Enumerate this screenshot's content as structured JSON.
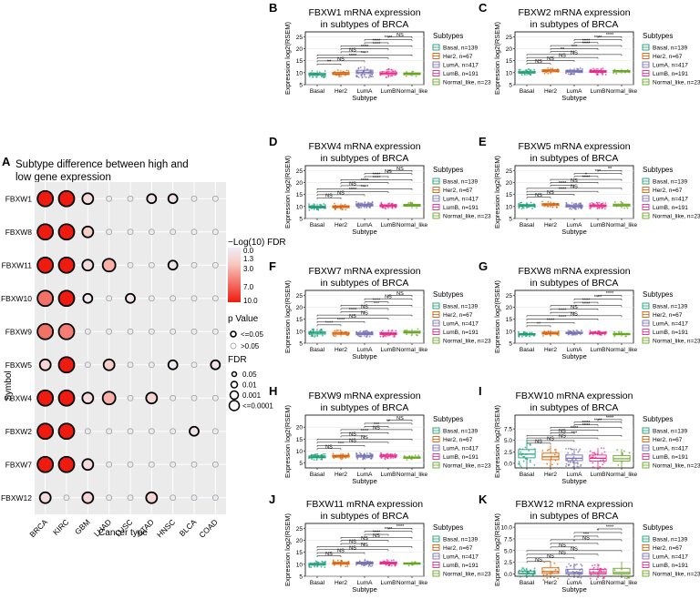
{
  "panel_a": {
    "letter": "A",
    "title_line1": "Subtype difference between high and",
    "title_line2": "low gene expression",
    "ylabel": "Symbol",
    "xlabel": "Cancer type",
    "fdr_legend_title": "−Log(10) FDR",
    "fdr_ticks": [
      "0.0",
      "1.3",
      "3.0",
      "7.0",
      "10.0"
    ],
    "pvalue_legend_title": "p Value",
    "pvalue_items": [
      "<=0.05",
      ">0.05"
    ],
    "fdr_size_title": "FDR",
    "fdr_size_items": [
      "0.05",
      "0.01",
      "0.001",
      "<=0.0001"
    ],
    "colors": {
      "low": "#eeeef8",
      "mid": "#f8c8c0",
      "high": "#ee1c10",
      "panel_bg": "#ebebeb",
      "grid": "#ffffff"
    }
  },
  "chart_data": [
    {
      "type": "scatter",
      "title": "Subtype difference between high and low gene expression",
      "xlabel": "Cancer type",
      "ylabel": "Symbol",
      "x_categories": [
        "BRCA",
        "KIRC",
        "GBM",
        "LUAD",
        "LUSC",
        "STAD",
        "HNSC",
        "BLCA",
        "COAD"
      ],
      "y_categories": [
        "FBXW1",
        "FBXW8",
        "FBXW11",
        "FBXW10",
        "FBXW9",
        "FBXW5",
        "FBXW4",
        "FBXW2",
        "FBXW7",
        "FBXW12"
      ],
      "neglog10_fdr": [
        [
          10,
          10,
          1.5,
          0.3,
          0.3,
          1.0,
          1.0,
          0.2,
          0.2
        ],
        [
          10,
          10,
          2.5,
          0.3,
          0.3,
          0.3,
          0.3,
          0.2,
          0.2
        ],
        [
          10,
          10,
          1.5,
          4.0,
          0.3,
          0.3,
          0.8,
          0.2,
          0.2
        ],
        [
          6.5,
          10,
          0.5,
          0.3,
          0.8,
          0.3,
          0.3,
          0.2,
          0.2
        ],
        [
          6.5,
          6.0,
          0.3,
          0.3,
          0.3,
          0.3,
          0.3,
          0.2,
          0.2
        ],
        [
          2.0,
          10,
          0.3,
          2.5,
          0.3,
          0.3,
          0.3,
          0.2,
          0.8
        ],
        [
          10,
          10,
          1.5,
          4.0,
          0.3,
          2.0,
          0.3,
          0.2,
          0.2
        ],
        [
          10,
          10,
          0.3,
          0.3,
          0.3,
          0.3,
          0.3,
          0.8,
          0.2
        ],
        [
          10,
          10,
          1.5,
          0.3,
          0.3,
          0.3,
          0.3,
          0.2,
          0.2
        ],
        [
          1.5,
          0.3,
          2.0,
          0.3,
          0.3,
          2.0,
          0.3,
          0.2,
          0.2
        ]
      ],
      "significant": [
        [
          1,
          1,
          1,
          0,
          0,
          1,
          1,
          0,
          0
        ],
        [
          1,
          1,
          1,
          0,
          0,
          0,
          0,
          0,
          0
        ],
        [
          1,
          1,
          1,
          1,
          0,
          0,
          1,
          0,
          0
        ],
        [
          1,
          1,
          1,
          0,
          1,
          0,
          0,
          0,
          0
        ],
        [
          1,
          1,
          0,
          0,
          0,
          0,
          0,
          0,
          0
        ],
        [
          1,
          1,
          0,
          1,
          0,
          0,
          1,
          0,
          1
        ],
        [
          1,
          1,
          1,
          1,
          0,
          1,
          0,
          0,
          0
        ],
        [
          1,
          1,
          0,
          0,
          0,
          0,
          0,
          1,
          0
        ],
        [
          1,
          1,
          1,
          0,
          0,
          0,
          0,
          0,
          0
        ],
        [
          1,
          0,
          1,
          0,
          0,
          1,
          0,
          0,
          0
        ]
      ],
      "fdr_legend_range": [
        0,
        10
      ],
      "p_value_legend": [
        "<=0.05",
        ">0.05"
      ],
      "fdr_size_legend": [
        "0.05",
        "0.01",
        "0.001",
        "<=0.0001"
      ]
    },
    {
      "type": "box",
      "letter": "B",
      "title_line1": "FBXW1 mRNA expression",
      "title_line2": "in subtypes of BRCA",
      "xlabel": "Subtype",
      "ylabel": "Expression log2(RSEM)",
      "ylim": [
        5,
        27
      ],
      "yticks": [
        "5",
        "10",
        "15",
        "20",
        "25"
      ],
      "categories": [
        "Basal",
        "Her2",
        "LumA",
        "LumB",
        "Normal_like"
      ],
      "medians": [
        9.3,
        9.6,
        10.2,
        9.7,
        9.5
      ],
      "q1": [
        8.9,
        9.2,
        9.6,
        9.2,
        9.2
      ],
      "q3": [
        9.8,
        10.1,
        11.0,
        10.3,
        9.9
      ],
      "brackets": [
        "**",
        "NS",
        "****",
        "****",
        "NS",
        "****",
        "****",
        "****",
        "****",
        "NS"
      ]
    },
    {
      "type": "box",
      "letter": "C",
      "title_line1": "FBXW2 mRNA expression",
      "title_line2": "in subtypes of BRCA",
      "xlabel": "Subtype",
      "ylabel": "Expression log2(RSEM)",
      "ylim": [
        5,
        27
      ],
      "yticks": [
        "5",
        "10",
        "15",
        "20",
        "25"
      ],
      "categories": [
        "Basal",
        "Her2",
        "LumA",
        "LumB",
        "Normal_like"
      ],
      "medians": [
        10.2,
        10.8,
        10.6,
        10.5,
        10.6
      ],
      "q1": [
        9.8,
        10.4,
        10.2,
        10.1,
        10.3
      ],
      "q3": [
        10.6,
        11.2,
        11.0,
        10.9,
        10.9
      ],
      "brackets": [
        "NS",
        "NS",
        "NS",
        "NS",
        "**",
        "***",
        "****",
        "****",
        "****",
        "****"
      ]
    },
    {
      "type": "box",
      "letter": "D",
      "title_line1": "FBXW4 mRNA expression",
      "title_line2": "in subtypes of BRCA",
      "xlabel": "Subtype",
      "ylabel": "Expression log2(RSEM)",
      "ylim": [
        5,
        27
      ],
      "yticks": [
        "5",
        "10",
        "15",
        "20",
        "25"
      ],
      "categories": [
        "Basal",
        "Her2",
        "LumA",
        "LumB",
        "Normal_like"
      ],
      "medians": [
        9.8,
        9.9,
        10.6,
        10.3,
        10.5
      ],
      "q1": [
        9.4,
        9.5,
        10.2,
        9.9,
        10.1
      ],
      "q3": [
        10.2,
        10.3,
        11.0,
        10.7,
        10.9
      ],
      "brackets": [
        "NS",
        "NS",
        "****",
        "****",
        "NS",
        "****",
        "****",
        "****",
        "NS",
        "NS"
      ]
    },
    {
      "type": "box",
      "letter": "E",
      "title_line1": "FBXW5 mRNA expression",
      "title_line2": "in subtypes of BRCA",
      "xlabel": "Subtype",
      "ylabel": "Expression log2(RSEM)",
      "ylim": [
        5,
        27
      ],
      "yticks": [
        "5",
        "10",
        "15",
        "20",
        "25"
      ],
      "categories": [
        "Basal",
        "Her2",
        "LumA",
        "LumB",
        "Normal_like"
      ],
      "medians": [
        10.4,
        10.8,
        10.2,
        10.3,
        10.6
      ],
      "q1": [
        10.0,
        10.4,
        9.8,
        9.9,
        10.2
      ],
      "q3": [
        10.8,
        11.2,
        10.6,
        10.7,
        11.0
      ],
      "brackets": [
        "NS",
        "NS",
        "****",
        "NS",
        "****",
        "NS",
        "****",
        "*",
        "***",
        "**"
      ]
    },
    {
      "type": "box",
      "letter": "F",
      "title_line1": "FBXW7 mRNA expression",
      "title_line2": "in subtypes of BRCA",
      "xlabel": "Subtype",
      "ylabel": "Expression log2(RSEM)",
      "ylim": [
        5,
        27
      ],
      "yticks": [
        "5",
        "10",
        "15",
        "20",
        "25"
      ],
      "categories": [
        "Basal",
        "Her2",
        "LumA",
        "LumB",
        "Normal_like"
      ],
      "medians": [
        9.3,
        9.1,
        8.9,
        9.0,
        9.6
      ],
      "q1": [
        8.8,
        8.7,
        8.5,
        8.6,
        9.2
      ],
      "q3": [
        9.8,
        9.5,
        9.3,
        9.4,
        10.0
      ],
      "brackets": [
        "****",
        "****",
        "NS",
        "NS",
        "****",
        "NS",
        "***",
        "****",
        "NS",
        "NS"
      ]
    },
    {
      "type": "box",
      "letter": "G",
      "title_line1": "FBXW8 mRNA expression",
      "title_line2": "in subtypes of BRCA",
      "xlabel": "Subtype",
      "ylabel": "Expression log2(RSEM)",
      "ylim": [
        5,
        27
      ],
      "yticks": [
        "5",
        "10",
        "15",
        "20",
        "25"
      ],
      "categories": [
        "Basal",
        "Her2",
        "LumA",
        "LumB",
        "Normal_like"
      ],
      "medians": [
        8.7,
        9.2,
        9.3,
        9.3,
        8.8
      ],
      "q1": [
        8.4,
        8.8,
        9.0,
        9.0,
        8.5
      ],
      "q3": [
        9.0,
        9.6,
        9.6,
        9.6,
        9.1
      ],
      "brackets": [
        "**",
        "****",
        "****",
        "NS",
        "****",
        "NS",
        "****",
        "****",
        "****",
        "****"
      ]
    },
    {
      "type": "box",
      "letter": "H",
      "title_line1": "FBXW9 mRNA expression",
      "title_line2": "in subtypes of BRCA",
      "xlabel": "Subtype",
      "ylabel": "Expression log2(RSEM)",
      "ylim": [
        3,
        25
      ],
      "yticks": [
        "5",
        "10",
        "15",
        "20"
      ],
      "categories": [
        "Basal",
        "Her2",
        "LumA",
        "LumB",
        "Normal_like"
      ],
      "medians": [
        7.6,
        7.9,
        7.9,
        8.0,
        7.3
      ],
      "q1": [
        7.2,
        7.5,
        7.5,
        7.6,
        7.0
      ],
      "q3": [
        8.0,
        8.3,
        8.3,
        8.4,
        7.6
      ],
      "brackets": [
        "NS",
        "***",
        "NS",
        "NS",
        "NS",
        "****",
        "NS",
        "***",
        "**",
        "NS"
      ]
    },
    {
      "type": "box",
      "letter": "I",
      "title_line1": "FBXW10 mRNA expression",
      "title_line2": "in subtypes of BRCA",
      "xlabel": "Subtype",
      "ylabel": "Expression log2(RSEM)",
      "ylim": [
        -1,
        10.5
      ],
      "yticks": [
        "0.0",
        "2.5",
        "5.0",
        "7.5"
      ],
      "categories": [
        "Basal",
        "Her2",
        "LumA",
        "LumB",
        "Normal_like"
      ],
      "medians": [
        2.0,
        1.4,
        1.1,
        1.1,
        1.0
      ],
      "q1": [
        1.2,
        0.8,
        0.6,
        0.5,
        0.5
      ],
      "q3": [
        3.0,
        2.2,
        1.8,
        1.8,
        1.7
      ],
      "brackets": [
        "NS",
        "NS",
        "NS",
        "***",
        "NS",
        "****",
        "****",
        "****",
        "****",
        "****"
      ]
    },
    {
      "type": "box",
      "letter": "J",
      "title_line1": "FBXW11 mRNA expression",
      "title_line2": "in subtypes of BRCA",
      "xlabel": "Subtype",
      "ylabel": "Expression log2(RSEM)",
      "ylim": [
        5,
        27
      ],
      "yticks": [
        "5",
        "10",
        "15",
        "20",
        "25"
      ],
      "categories": [
        "Basal",
        "Her2",
        "LumA",
        "LumB",
        "Normal_like"
      ],
      "medians": [
        10.0,
        10.4,
        10.5,
        10.5,
        10.3
      ],
      "q1": [
        9.6,
        10.0,
        10.1,
        10.1,
        10.0
      ],
      "q3": [
        10.4,
        10.8,
        10.9,
        10.9,
        10.6
      ],
      "brackets": [
        "NS",
        "NS",
        "NS",
        "NS",
        "NS",
        "NS",
        "NS",
        "****",
        "****",
        "****"
      ]
    },
    {
      "type": "box",
      "letter": "K",
      "title_line1": "FBXW12 mRNA expression",
      "title_line2": "in subtypes of BRCA",
      "xlabel": "Subtype",
      "ylabel": "Expression log2(RSEM)",
      "ylim": [
        -0.5,
        10.8
      ],
      "yticks": [
        "0.0",
        "2.5",
        "5.0",
        "7.5",
        "10.0"
      ],
      "categories": [
        "Basal",
        "Her2",
        "LumA",
        "LumB",
        "Normal_like"
      ],
      "medians": [
        0.1,
        0.5,
        0.3,
        0.3,
        0.3
      ],
      "q1": [
        0.0,
        0.1,
        0.0,
        0.0,
        0.0
      ],
      "q3": [
        0.6,
        1.3,
        1.0,
        1.0,
        1.2
      ],
      "brackets": [
        "NS",
        "NS",
        "NS",
        "NS",
        "NS",
        "*",
        "NS",
        "***",
        "*",
        "****"
      ]
    }
  ],
  "box_legend": {
    "title": "Subtypes",
    "items": [
      "Basal, n=139",
      "Her2, n=67",
      "LumA, n=417",
      "LumB, n=191",
      "Normal_like, n=23"
    ],
    "colors": [
      "#1b9e77",
      "#d95f02",
      "#7570b3",
      "#e7298a",
      "#66a61e"
    ]
  }
}
